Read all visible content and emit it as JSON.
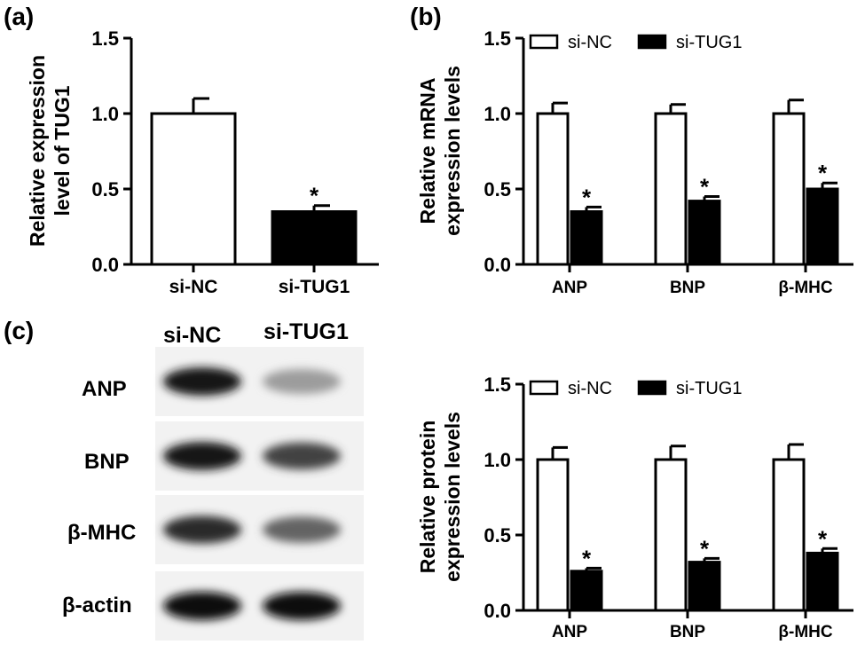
{
  "panels": {
    "a": "(a)",
    "b": "(b)",
    "c": "(c)"
  },
  "colors": {
    "sicontrol": "#ffffff",
    "sitarget": "#000000",
    "axis": "#000000",
    "membrane": "#f2f2f2"
  },
  "blot": {
    "headers": [
      "si-NC",
      "si-TUG1"
    ],
    "rows": [
      "ANP",
      "BNP",
      "β-MHC",
      "β-actin"
    ],
    "band_intensity": [
      [
        0.95,
        0.35
      ],
      [
        0.95,
        0.75
      ],
      [
        0.85,
        0.6
      ],
      [
        1.0,
        0.98
      ]
    ]
  },
  "chart_data": [
    {
      "id": "a",
      "type": "bar",
      "title": "",
      "ylabel_lines": [
        "Relative expression",
        "level of TUG1"
      ],
      "xlabel": "",
      "categories": [
        "si-NC",
        "si-TUG1"
      ],
      "values": [
        1.0,
        0.35
      ],
      "errors": [
        0.1,
        0.04
      ],
      "significance": [
        "",
        "*"
      ],
      "ylim": [
        0,
        1.5
      ],
      "yticks": [
        "0.0",
        "0.5",
        "1.0",
        "1.5"
      ],
      "grid": false,
      "legend": null
    },
    {
      "id": "b",
      "type": "bar",
      "title": "",
      "ylabel_lines": [
        "Relative mRNA",
        "expression levels"
      ],
      "xlabel": "",
      "categories": [
        "ANP",
        "BNP",
        "β-MHC"
      ],
      "series": [
        {
          "name": "si-NC",
          "values": [
            1.0,
            1.0,
            1.0
          ],
          "errors": [
            0.07,
            0.06,
            0.09
          ],
          "significance": [
            "",
            "",
            ""
          ]
        },
        {
          "name": "si-TUG1",
          "values": [
            0.35,
            0.42,
            0.5
          ],
          "errors": [
            0.03,
            0.03,
            0.04
          ],
          "significance": [
            "*",
            "*",
            "*"
          ]
        }
      ],
      "ylim": [
        0,
        1.5
      ],
      "yticks": [
        "0.0",
        "0.5",
        "1.0",
        "1.5"
      ],
      "grid": false,
      "legend": "top"
    },
    {
      "id": "c",
      "type": "bar",
      "title": "",
      "ylabel_lines": [
        "Relative protein",
        "expression levels"
      ],
      "xlabel": "",
      "categories": [
        "ANP",
        "BNP",
        "β-MHC"
      ],
      "series": [
        {
          "name": "si-NC",
          "values": [
            1.0,
            1.0,
            1.0
          ],
          "errors": [
            0.08,
            0.09,
            0.1
          ],
          "significance": [
            "",
            "",
            ""
          ]
        },
        {
          "name": "si-TUG1",
          "values": [
            0.26,
            0.32,
            0.38
          ],
          "errors": [
            0.02,
            0.025,
            0.03
          ],
          "significance": [
            "*",
            "*",
            "*"
          ]
        }
      ],
      "ylim": [
        0,
        1.5
      ],
      "yticks": [
        "0.0",
        "0.5",
        "1.0",
        "1.5"
      ],
      "grid": false,
      "legend": "top"
    }
  ]
}
